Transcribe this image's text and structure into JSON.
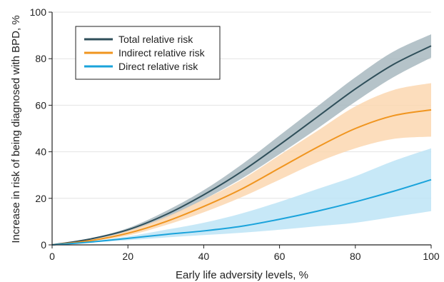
{
  "chart_data": {
    "type": "line",
    "title": "",
    "xlabel": "Early life adversity levels, %",
    "ylabel": "Increase in risk of being diagnosed with BPD, %",
    "xlim": [
      0,
      100
    ],
    "ylim": [
      0,
      100
    ],
    "xticks": [
      "0",
      "20",
      "40",
      "60",
      "80",
      "100"
    ],
    "yticks": [
      "0",
      "20",
      "40",
      "60",
      "80",
      "100"
    ],
    "grid": "horizontal",
    "legend_position": "top-left",
    "x": [
      0,
      10,
      20,
      30,
      40,
      50,
      60,
      70,
      80,
      90,
      100
    ],
    "series": [
      {
        "name": "Total relative risk",
        "color": "#2f4f5a",
        "band_color": "#a8b8c0",
        "values": [
          0,
          2.5,
          6.5,
          13.0,
          21.5,
          31.5,
          43.0,
          55.0,
          67.0,
          77.5,
          85.5
        ],
        "lower": [
          0,
          2.2,
          5.8,
          11.5,
          19.5,
          28.5,
          39.0,
          50.0,
          61.5,
          72.0,
          80.5
        ],
        "upper": [
          0,
          2.8,
          7.2,
          14.5,
          23.5,
          34.5,
          47.0,
          59.5,
          72.0,
          83.0,
          90.5
        ]
      },
      {
        "name": "Indirect relative risk",
        "color": "#f0951f",
        "band_color": "#fbd7b0",
        "values": [
          0,
          1.8,
          5.0,
          10.0,
          16.5,
          24.0,
          33.0,
          42.0,
          50.0,
          55.5,
          58.0
        ],
        "lower": [
          0,
          1.5,
          4.0,
          8.5,
          14.0,
          20.5,
          28.0,
          35.5,
          41.5,
          45.5,
          46.5
        ],
        "upper": [
          0,
          2.1,
          6.0,
          12.0,
          19.5,
          28.0,
          38.5,
          49.0,
          59.5,
          66.5,
          69.5
        ]
      },
      {
        "name": "Direct relative risk",
        "color": "#1aa3db",
        "band_color": "#bde4f6",
        "values": [
          0,
          1.2,
          2.8,
          4.5,
          6.0,
          8.0,
          11.0,
          14.5,
          18.5,
          23.0,
          28.0
        ],
        "lower": [
          0,
          1.0,
          2.0,
          3.2,
          4.2,
          5.2,
          6.5,
          8.0,
          9.5,
          12.0,
          14.5
        ],
        "upper": [
          0,
          1.5,
          3.6,
          6.5,
          9.5,
          13.5,
          18.5,
          24.0,
          29.5,
          36.0,
          41.5
        ]
      }
    ]
  }
}
